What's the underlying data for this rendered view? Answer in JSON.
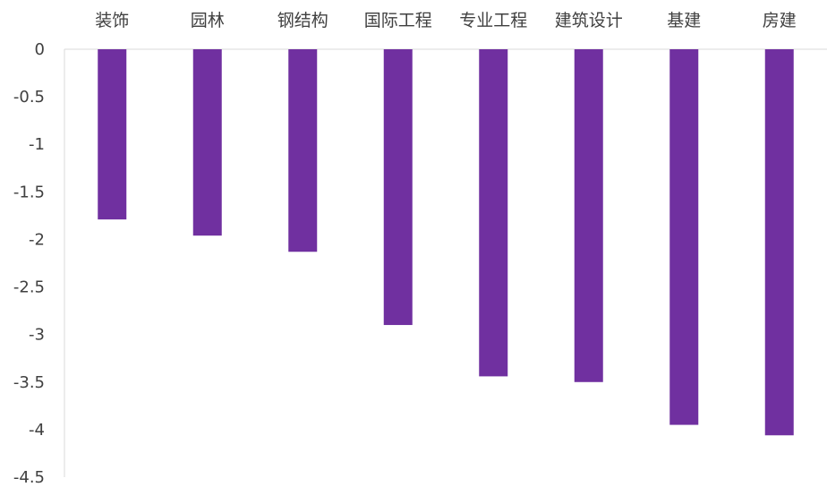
{
  "chart_data": {
    "type": "bar",
    "categories": [
      "装饰",
      "园林",
      "钢结构",
      "国际工程",
      "专业工程",
      "建筑设计",
      "基建",
      "房建"
    ],
    "series": [
      {
        "values": [
          -1.79,
          -1.96,
          -2.13,
          -2.9,
          -3.44,
          -3.5,
          -3.95,
          -4.06
        ]
      }
    ],
    "ylim": [
      -4.5,
      0
    ],
    "yticks": [
      "0",
      "-0.5",
      "-1",
      "-1.5",
      "-2",
      "-2.5",
      "-3",
      "-3.5",
      "-4",
      "-4.5"
    ],
    "yticks_values": [
      0,
      -0.5,
      -1,
      -1.5,
      -2,
      -2.5,
      -3,
      -3.5,
      -4,
      -4.5
    ],
    "xaxis_position": "top",
    "grid": false,
    "legend": "none",
    "title": "",
    "xlabel": "",
    "ylabel": "",
    "colors": {
      "bar": "#7030A0",
      "axis": "#D9D9D9",
      "text": "#404040"
    }
  }
}
